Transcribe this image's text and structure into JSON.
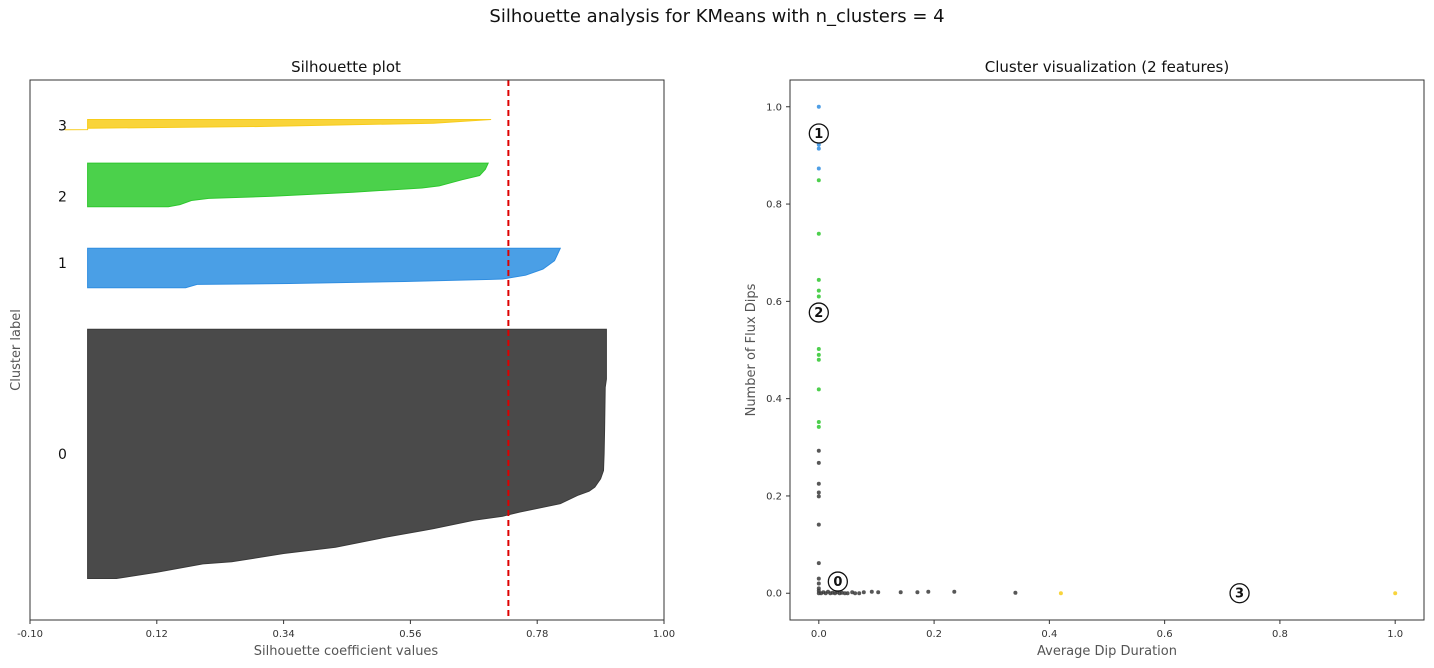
{
  "suptitle": "Silhouette analysis for KMeans with n_clusters = 4",
  "colors": {
    "0": "#3a3a3a",
    "1": "#2f8de0",
    "2": "#2ec72e",
    "3": "#f7cc1a",
    "average_line": "#dd0000",
    "fill_0": "#4a4a4a",
    "fill_1": "#4a9fe6",
    "fill_2": "#4bd14b",
    "fill_3": "#f9d43a"
  },
  "chart_data": [
    {
      "type": "area",
      "title": "Silhouette plot",
      "xlabel": "Silhouette coefficient values",
      "ylabel": "Cluster label",
      "xlim": [
        -0.1,
        1.0
      ],
      "xticks": [
        "-0.10",
        "0.12",
        "0.34",
        "0.56",
        "0.78",
        "1.00"
      ],
      "xtick_values": [
        -0.1,
        0.12,
        0.34,
        0.56,
        0.78,
        1.0
      ],
      "ylim": [
        0,
        130
      ],
      "average_silhouette": 0.73,
      "clusters": [
        {
          "label": "0",
          "y_lower": 10,
          "y_upper": 70,
          "label_y": 40,
          "profile": [
            [
              0.0,
              0.0
            ],
            [
              0.05,
              0.0
            ],
            [
              0.12,
              1.5
            ],
            [
              0.2,
              3.5
            ],
            [
              0.25,
              4
            ],
            [
              0.34,
              6
            ],
            [
              0.43,
              7.5
            ],
            [
              0.52,
              10
            ],
            [
              0.58,
              11.5
            ],
            [
              0.6,
              12
            ],
            [
              0.67,
              14
            ],
            [
              0.72,
              15
            ],
            [
              0.75,
              16
            ],
            [
              0.82,
              18
            ],
            [
              0.85,
              20
            ],
            [
              0.87,
              21
            ],
            [
              0.88,
              22
            ],
            [
              0.89,
              24
            ],
            [
              0.895,
              26
            ],
            [
              0.896,
              30
            ],
            [
              0.897,
              36
            ],
            [
              0.898,
              46
            ],
            [
              0.9,
              48
            ],
            [
              0.9,
              54
            ],
            [
              0.9,
              60
            ]
          ]
        },
        {
          "label": "1",
          "y_lower": 80,
          "y_upper": 89.5,
          "label_y": 86,
          "profile": [
            [
              0.0,
              0.0
            ],
            [
              0.05,
              0.0
            ],
            [
              0.17,
              0.0
            ],
            [
              0.19,
              0.8
            ],
            [
              0.35,
              1.0
            ],
            [
              0.55,
              1.5
            ],
            [
              0.7,
              2.0
            ],
            [
              0.72,
              2.1
            ],
            [
              0.76,
              3
            ],
            [
              0.79,
              4.5
            ],
            [
              0.81,
              6.5
            ],
            [
              0.815,
              8
            ],
            [
              0.82,
              9.5
            ]
          ]
        },
        {
          "label": "2",
          "y_lower": 99.5,
          "y_upper": 110,
          "label_y": 102,
          "profile": [
            [
              0.0,
              0.0
            ],
            [
              0.14,
              0.0
            ],
            [
              0.16,
              0.5
            ],
            [
              0.18,
              1.5
            ],
            [
              0.21,
              2
            ],
            [
              0.32,
              2.5
            ],
            [
              0.46,
              3.5
            ],
            [
              0.58,
              4.5
            ],
            [
              0.61,
              5
            ],
            [
              0.65,
              6.5
            ],
            [
              0.68,
              7.5
            ],
            [
              0.69,
              9
            ],
            [
              0.695,
              10.5
            ]
          ]
        },
        {
          "label": "3",
          "y_lower": 118,
          "y_upper": 120.5,
          "label_y": 119,
          "profile": [
            [
              -0.04,
              0.0
            ],
            [
              0.0,
              0.05
            ],
            [
              0.0,
              0.4
            ],
            [
              0.3,
              0.8
            ],
            [
              0.6,
              1.6
            ],
            [
              0.7,
              2.5
            ]
          ]
        }
      ]
    },
    {
      "type": "scatter",
      "title": "Cluster visualization (2 features)",
      "xlabel": "Average Dip Duration",
      "ylabel": "Number of Flux Dips",
      "xlim": [
        -0.05,
        1.05
      ],
      "ylim": [
        -0.055,
        1.055
      ],
      "xticks": [
        "0.0",
        "0.2",
        "0.4",
        "0.6",
        "0.8",
        "1.0"
      ],
      "xtick_values": [
        0.0,
        0.2,
        0.4,
        0.6,
        0.8,
        1.0
      ],
      "yticks": [
        "0.0",
        "0.2",
        "0.4",
        "0.6",
        "0.8",
        "1.0"
      ],
      "ytick_values": [
        0.0,
        0.2,
        0.4,
        0.6,
        0.8,
        1.0
      ],
      "series": [
        {
          "cluster": "0",
          "points": [
            [
              0,
              0.293
            ],
            [
              0,
              0.268
            ],
            [
              0,
              0.225
            ],
            [
              0,
              0.207
            ],
            [
              0,
              0.199
            ],
            [
              0,
              0.141
            ],
            [
              0,
              0.062
            ],
            [
              0,
              0.03
            ],
            [
              0,
              0.02
            ],
            [
              0,
              0.01
            ],
            [
              0,
              0.005
            ],
            [
              0,
              0.0
            ],
            [
              0.004,
              0.0
            ],
            [
              0.008,
              0.002
            ],
            [
              0.012,
              0.0
            ],
            [
              0.016,
              0.003
            ],
            [
              0.02,
              0.0
            ],
            [
              0.024,
              0.001
            ],
            [
              0.028,
              0.0
            ],
            [
              0.032,
              0.002
            ],
            [
              0.036,
              0.0
            ],
            [
              0.04,
              0.001
            ],
            [
              0.045,
              0.0
            ],
            [
              0.05,
              0.0
            ],
            [
              0.058,
              0.002
            ],
            [
              0.063,
              0.0
            ],
            [
              0.07,
              0.0
            ],
            [
              0.078,
              0.002
            ],
            [
              0.092,
              0.003
            ],
            [
              0.103,
              0.002
            ],
            [
              0.142,
              0.002
            ],
            [
              0.171,
              0.002
            ],
            [
              0.19,
              0.003
            ],
            [
              0.235,
              0.003
            ],
            [
              0.341,
              0.001
            ]
          ]
        },
        {
          "cluster": "1",
          "points": [
            [
              0,
              1.0
            ],
            [
              0,
              0.938
            ],
            [
              0,
              0.93
            ],
            [
              0,
              0.922
            ],
            [
              0,
              0.914
            ],
            [
              0,
              0.873
            ]
          ]
        },
        {
          "cluster": "2",
          "points": [
            [
              0,
              0.849
            ],
            [
              0,
              0.739
            ],
            [
              0,
              0.644
            ],
            [
              0,
              0.622
            ],
            [
              0,
              0.61
            ],
            [
              0,
              0.502
            ],
            [
              0,
              0.49
            ],
            [
              0,
              0.48
            ],
            [
              0,
              0.419
            ],
            [
              0,
              0.352
            ],
            [
              0,
              0.342
            ]
          ]
        },
        {
          "cluster": "3",
          "points": [
            [
              0.42,
              0.0
            ],
            [
              1.0,
              0.0
            ]
          ]
        }
      ],
      "centers": [
        {
          "label": "0",
          "x": 0.033,
          "y": 0.024
        },
        {
          "label": "1",
          "x": 0.0,
          "y": 0.945
        },
        {
          "label": "2",
          "x": 0.0,
          "y": 0.577
        },
        {
          "label": "3",
          "x": 0.73,
          "y": 0.0
        }
      ]
    }
  ]
}
